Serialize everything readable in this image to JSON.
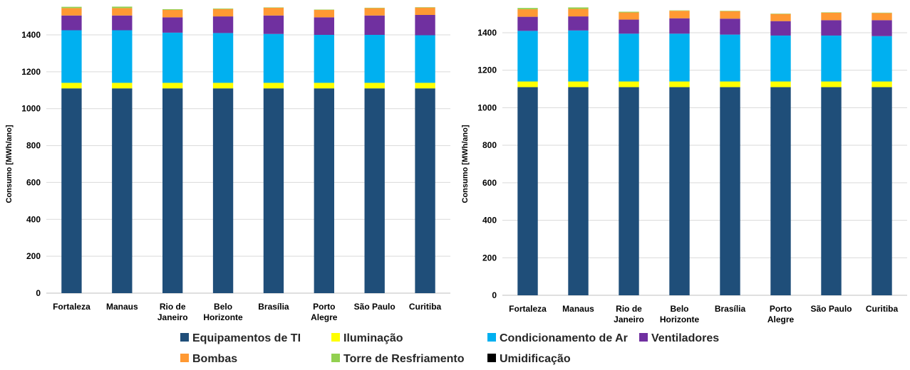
{
  "legend": [
    {
      "key": "ti",
      "label": "Equipamentos de TI",
      "color": "#1F4E79"
    },
    {
      "key": "ilum",
      "label": "Iluminação",
      "color": "#FFFF00"
    },
    {
      "key": "cond",
      "label": "Condicionamento de Ar",
      "color": "#00B0F0"
    },
    {
      "key": "vent",
      "label": "Ventiladores",
      "color": "#7030A0"
    },
    {
      "key": "bomb",
      "label": "Bombas",
      "color": "#FF9933"
    },
    {
      "key": "torre",
      "label": "Torre de Resfriamento",
      "color": "#92D050"
    },
    {
      "key": "umid",
      "label": "Umidificação",
      "color": "#000000"
    }
  ],
  "chart_data": [
    {
      "type": "bar",
      "stacked": true,
      "ylabel": "Consumo [MWh/ano]",
      "ylim": [
        0,
        1500
      ],
      "yticks": [
        0,
        200,
        400,
        600,
        800,
        1000,
        1200,
        1400
      ],
      "grid": true,
      "categories": [
        [
          "Fortaleza"
        ],
        [
          "Manaus"
        ],
        [
          "Rio de",
          "Janeiro"
        ],
        [
          "Belo",
          "Horizonte"
        ],
        [
          "Brasília"
        ],
        [
          "Porto",
          "Alegre"
        ],
        [
          "São Paulo"
        ],
        [
          "Curitiba"
        ]
      ],
      "series": [
        {
          "name": "Equipamentos de TI",
          "values": [
            1110,
            1110,
            1110,
            1110,
            1110,
            1110,
            1110,
            1110
          ]
        },
        {
          "name": "Iluminação",
          "values": [
            30,
            30,
            30,
            30,
            30,
            30,
            30,
            30
          ]
        },
        {
          "name": "Condicionamento de Ar",
          "values": [
            285,
            285,
            272,
            270,
            265,
            260,
            260,
            258
          ]
        },
        {
          "name": "Ventiladores",
          "values": [
            80,
            80,
            83,
            90,
            100,
            95,
            105,
            110
          ]
        },
        {
          "name": "Bombas",
          "values": [
            40,
            40,
            40,
            40,
            42,
            40,
            40,
            40
          ]
        },
        {
          "name": "Torre de Resfriamento",
          "values": [
            7,
            8,
            4,
            3,
            2,
            2,
            2,
            2
          ]
        },
        {
          "name": "Umidificação",
          "values": [
            0,
            0,
            0,
            0,
            0,
            0,
            0,
            0
          ]
        }
      ]
    },
    {
      "type": "bar",
      "stacked": true,
      "ylabel": "Consumo [MWh/ano]",
      "ylim": [
        0,
        1500
      ],
      "yticks": [
        0,
        200,
        400,
        600,
        800,
        1000,
        1200,
        1400
      ],
      "grid": true,
      "categories": [
        [
          "Fortaleza"
        ],
        [
          "Manaus"
        ],
        [
          "Rio de",
          "Janeiro"
        ],
        [
          "Belo",
          "Horizonte"
        ],
        [
          "Brasília"
        ],
        [
          "Porto",
          "Alegre"
        ],
        [
          "São Paulo"
        ],
        [
          "Curitiba"
        ]
      ],
      "series": [
        {
          "name": "Equipamentos de TI",
          "values": [
            1110,
            1110,
            1110,
            1110,
            1110,
            1110,
            1110,
            1110
          ]
        },
        {
          "name": "Iluminação",
          "values": [
            30,
            30,
            30,
            30,
            30,
            30,
            30,
            30
          ]
        },
        {
          "name": "Condicionamento de Ar",
          "values": [
            270,
            272,
            255,
            255,
            250,
            245,
            245,
            242
          ]
        },
        {
          "name": "Ventiladores",
          "values": [
            75,
            75,
            75,
            82,
            85,
            77,
            82,
            85
          ]
        },
        {
          "name": "Bombas",
          "values": [
            40,
            40,
            38,
            40,
            40,
            38,
            40,
            38
          ]
        },
        {
          "name": "Torre de Resfriamento",
          "values": [
            7,
            8,
            4,
            2,
            2,
            2,
            2,
            2
          ]
        },
        {
          "name": "Umidificação",
          "values": [
            0,
            0,
            0,
            0,
            0,
            0,
            0,
            0
          ]
        }
      ]
    }
  ]
}
